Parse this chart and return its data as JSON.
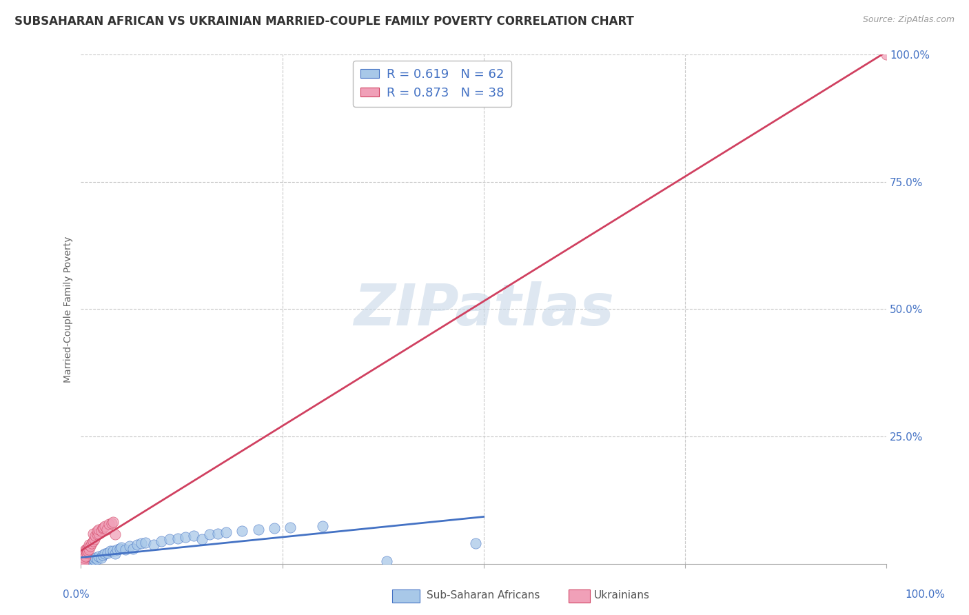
{
  "title": "SUBSAHARAN AFRICAN VS UKRAINIAN MARRIED-COUPLE FAMILY POVERTY CORRELATION CHART",
  "source": "Source: ZipAtlas.com",
  "xlabel_label": "Sub-Saharan Africans",
  "xlabel_label2": "Ukrainians",
  "ylabel": "Married-Couple Family Poverty",
  "watermark": "ZIPatlas",
  "blue_R": 0.619,
  "blue_N": 62,
  "pink_R": 0.873,
  "pink_N": 38,
  "blue_color": "#A8C8E8",
  "pink_color": "#F0A0B8",
  "blue_line_color": "#4472C4",
  "pink_line_color": "#D04060",
  "scatter_blue": [
    [
      0.001,
      0.001
    ],
    [
      0.001,
      0.002
    ],
    [
      0.002,
      0.001
    ],
    [
      0.002,
      0.003
    ],
    [
      0.003,
      0.001
    ],
    [
      0.003,
      0.002
    ],
    [
      0.004,
      0.002
    ],
    [
      0.004,
      0.005
    ],
    [
      0.005,
      0.001
    ],
    [
      0.005,
      0.003
    ],
    [
      0.006,
      0.004
    ],
    [
      0.006,
      0.002
    ],
    [
      0.007,
      0.003
    ],
    [
      0.007,
      0.006
    ],
    [
      0.008,
      0.004
    ],
    [
      0.008,
      0.001
    ],
    [
      0.009,
      0.005
    ],
    [
      0.01,
      0.003
    ],
    [
      0.01,
      0.007
    ],
    [
      0.011,
      0.006
    ],
    [
      0.012,
      0.008
    ],
    [
      0.013,
      0.005
    ],
    [
      0.014,
      0.009
    ],
    [
      0.015,
      0.007
    ],
    [
      0.016,
      0.01
    ],
    [
      0.017,
      0.008
    ],
    [
      0.018,
      0.012
    ],
    [
      0.02,
      0.01
    ],
    [
      0.022,
      0.015
    ],
    [
      0.025,
      0.012
    ],
    [
      0.027,
      0.018
    ],
    [
      0.03,
      0.02
    ],
    [
      0.033,
      0.022
    ],
    [
      0.036,
      0.025
    ],
    [
      0.04,
      0.025
    ],
    [
      0.042,
      0.02
    ],
    [
      0.045,
      0.028
    ],
    [
      0.048,
      0.03
    ],
    [
      0.05,
      0.032
    ],
    [
      0.055,
      0.028
    ],
    [
      0.06,
      0.035
    ],
    [
      0.065,
      0.03
    ],
    [
      0.07,
      0.038
    ],
    [
      0.075,
      0.04
    ],
    [
      0.08,
      0.042
    ],
    [
      0.09,
      0.038
    ],
    [
      0.1,
      0.045
    ],
    [
      0.11,
      0.048
    ],
    [
      0.12,
      0.05
    ],
    [
      0.13,
      0.052
    ],
    [
      0.14,
      0.055
    ],
    [
      0.15,
      0.048
    ],
    [
      0.16,
      0.058
    ],
    [
      0.17,
      0.06
    ],
    [
      0.18,
      0.062
    ],
    [
      0.2,
      0.065
    ],
    [
      0.22,
      0.068
    ],
    [
      0.24,
      0.07
    ],
    [
      0.26,
      0.072
    ],
    [
      0.3,
      0.075
    ],
    [
      0.38,
      0.005
    ],
    [
      0.49,
      0.04
    ]
  ],
  "scatter_pink": [
    [
      0.001,
      0.002
    ],
    [
      0.001,
      0.005
    ],
    [
      0.002,
      0.008
    ],
    [
      0.002,
      0.01
    ],
    [
      0.003,
      0.015
    ],
    [
      0.003,
      0.004
    ],
    [
      0.004,
      0.012
    ],
    [
      0.004,
      0.02
    ],
    [
      0.005,
      0.018
    ],
    [
      0.005,
      0.025
    ],
    [
      0.006,
      0.015
    ],
    [
      0.006,
      0.028
    ],
    [
      0.007,
      0.022
    ],
    [
      0.007,
      0.03
    ],
    [
      0.008,
      0.025
    ],
    [
      0.009,
      0.032
    ],
    [
      0.01,
      0.028
    ],
    [
      0.01,
      0.038
    ],
    [
      0.012,
      0.035
    ],
    [
      0.013,
      0.04
    ],
    [
      0.015,
      0.045
    ],
    [
      0.015,
      0.06
    ],
    [
      0.017,
      0.048
    ],
    [
      0.018,
      0.055
    ],
    [
      0.02,
      0.058
    ],
    [
      0.02,
      0.065
    ],
    [
      0.022,
      0.06
    ],
    [
      0.022,
      0.068
    ],
    [
      0.025,
      0.065
    ],
    [
      0.027,
      0.07
    ],
    [
      0.028,
      0.072
    ],
    [
      0.03,
      0.075
    ],
    [
      0.032,
      0.068
    ],
    [
      0.035,
      0.078
    ],
    [
      0.038,
      0.08
    ],
    [
      0.04,
      0.082
    ],
    [
      0.042,
      0.058
    ],
    [
      1.0,
      1.0
    ]
  ],
  "xlim": [
    0.0,
    1.0
  ],
  "ylim": [
    0.0,
    1.0
  ],
  "xtick_positions": [
    0.0,
    0.25,
    0.5,
    0.75,
    1.0
  ],
  "ytick_positions": [
    0.25,
    0.5,
    0.75,
    1.0
  ],
  "x_edge_labels": [
    "0.0%",
    "100.0%"
  ],
  "ytick_labels": [
    "25.0%",
    "50.0%",
    "75.0%",
    "100.0%"
  ],
  "grid_color": "#C8C8C8",
  "background_color": "#FFFFFF",
  "title_fontsize": 12,
  "axis_label_color": "#4472C4",
  "watermark_color": "#C8D8E8",
  "watermark_fontsize": 60
}
